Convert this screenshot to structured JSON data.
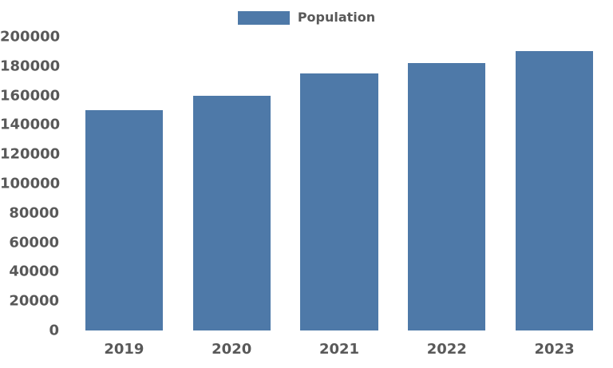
{
  "legend": {
    "label": "Population",
    "swatch_color": "#4e79a8"
  },
  "chart_data": {
    "type": "bar",
    "title": "",
    "xlabel": "",
    "ylabel": "",
    "categories": [
      "2019",
      "2020",
      "2021",
      "2022",
      "2023"
    ],
    "series": [
      {
        "name": "Population",
        "values": [
          150000,
          160000,
          175000,
          182000,
          190000
        ]
      }
    ],
    "ylim": [
      0,
      200000
    ],
    "yticks": [
      0,
      20000,
      40000,
      60000,
      80000,
      100000,
      120000,
      140000,
      160000,
      180000,
      200000
    ],
    "grid": false,
    "legend_position": "top-center",
    "bar_color": "#4e79a8",
    "axis_label_color": "#595959"
  }
}
